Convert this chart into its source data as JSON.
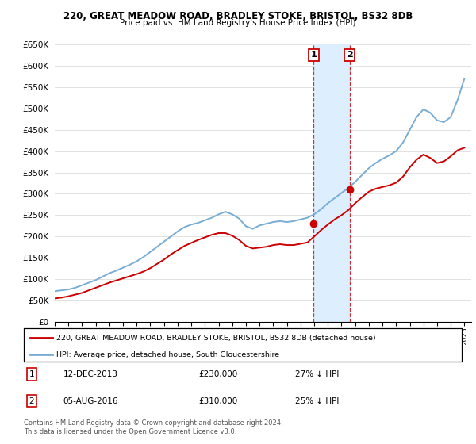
{
  "title": "220, GREAT MEADOW ROAD, BRADLEY STOKE, BRISTOL, BS32 8DB",
  "subtitle": "Price paid vs. HM Land Registry's House Price Index (HPI)",
  "legend_line1": "220, GREAT MEADOW ROAD, BRADLEY STOKE, BRISTOL, BS32 8DB (detached house)",
  "legend_line2": "HPI: Average price, detached house, South Gloucestershire",
  "footer": "Contains HM Land Registry data © Crown copyright and database right 2024.\nThis data is licensed under the Open Government Licence v3.0.",
  "annotation1_label": "1",
  "annotation1_date": "12-DEC-2013",
  "annotation1_price": "£230,000",
  "annotation1_hpi": "27% ↓ HPI",
  "annotation2_label": "2",
  "annotation2_date": "05-AUG-2016",
  "annotation2_price": "£310,000",
  "annotation2_hpi": "25% ↓ HPI",
  "ylim": [
    0,
    650000
  ],
  "xlim_start": 1995.0,
  "xlim_end": 2025.5,
  "red_color": "#cc0000",
  "blue_color": "#7aadd4",
  "shade_color": "#ddeeff",
  "marker1_x": 2013.95,
  "marker1_y": 230000,
  "marker2_x": 2016.6,
  "marker2_y": 310000,
  "hpi_years": [
    1995,
    1995.5,
    1996,
    1996.5,
    1997,
    1997.5,
    1998,
    1998.5,
    1999,
    1999.5,
    2000,
    2000.5,
    2001,
    2001.5,
    2002,
    2002.5,
    2003,
    2003.5,
    2004,
    2004.5,
    2005,
    2005.5,
    2006,
    2006.5,
    2007,
    2007.5,
    2008,
    2008.5,
    2009,
    2009.5,
    2010,
    2010.5,
    2011,
    2011.5,
    2012,
    2012.5,
    2013,
    2013.5,
    2014,
    2014.5,
    2015,
    2015.5,
    2016,
    2016.5,
    2017,
    2017.5,
    2018,
    2018.5,
    2019,
    2019.5,
    2020,
    2020.5,
    2021,
    2021.5,
    2022,
    2022.5,
    2023,
    2023.5,
    2024,
    2024.5,
    2025
  ],
  "hpi_values": [
    72000,
    74000,
    76000,
    80000,
    86000,
    92000,
    98000,
    106000,
    114000,
    120000,
    127000,
    134000,
    142000,
    152000,
    164000,
    176000,
    188000,
    200000,
    212000,
    222000,
    228000,
    232000,
    238000,
    244000,
    252000,
    258000,
    252000,
    242000,
    224000,
    218000,
    226000,
    230000,
    234000,
    236000,
    234000,
    236000,
    240000,
    244000,
    252000,
    264000,
    278000,
    290000,
    302000,
    314000,
    328000,
    344000,
    360000,
    372000,
    382000,
    390000,
    400000,
    420000,
    450000,
    480000,
    498000,
    490000,
    472000,
    468000,
    480000,
    520000,
    570000
  ],
  "red_years": [
    1995,
    1995.5,
    1996,
    1996.5,
    1997,
    1997.5,
    1998,
    1998.5,
    1999,
    1999.5,
    2000,
    2000.5,
    2001,
    2001.5,
    2002,
    2002.5,
    2003,
    2003.5,
    2004,
    2004.5,
    2005,
    2005.5,
    2006,
    2006.5,
    2007,
    2007.5,
    2008,
    2008.5,
    2009,
    2009.5,
    2010,
    2010.5,
    2011,
    2011.5,
    2012,
    2012.5,
    2013,
    2013.5,
    2014,
    2014.5,
    2015,
    2015.5,
    2016,
    2016.5,
    2017,
    2017.5,
    2018,
    2018.5,
    2019,
    2019.5,
    2020,
    2020.5,
    2021,
    2021.5,
    2022,
    2022.5,
    2023,
    2023.5,
    2024,
    2024.5,
    2025
  ],
  "red_values": [
    55000,
    57000,
    60000,
    64000,
    68000,
    74000,
    80000,
    86000,
    92000,
    97000,
    102000,
    107000,
    112000,
    118000,
    126000,
    136000,
    146000,
    158000,
    168000,
    178000,
    185000,
    192000,
    198000,
    204000,
    208000,
    208000,
    202000,
    192000,
    178000,
    172000,
    174000,
    176000,
    180000,
    182000,
    180000,
    180000,
    183000,
    186000,
    200000,
    215000,
    228000,
    240000,
    250000,
    262000,
    278000,
    292000,
    305000,
    312000,
    316000,
    320000,
    326000,
    340000,
    362000,
    380000,
    392000,
    384000,
    372000,
    376000,
    388000,
    402000,
    408000
  ]
}
